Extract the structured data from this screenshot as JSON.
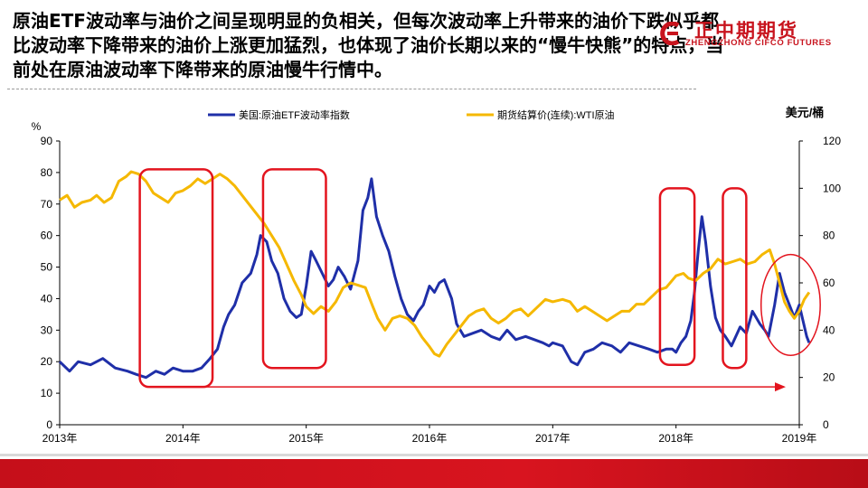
{
  "slide": {
    "headline": "原油ETF波动率与油价之间呈现明显的负相关，但每次波动率上升带来的油价下跌似乎都比波动率下降带来的油价上涨更加猛烈，也体现了油价长期以来的“慢牛快熊”的特点，当前处在原油波动率下降带来的原油慢牛行情中。"
  },
  "logo": {
    "name": "正中期期货",
    "subtitle": "ZHENGZHONG CIFCO FUTURES",
    "color": "#c8141e"
  },
  "colors": {
    "vol_series": "#1f2fa8",
    "price_series": "#f5b800",
    "highlight": "#e3141e",
    "footer": "#d0101b"
  },
  "chart_data": {
    "type": "line",
    "x": [
      "2013年",
      "2014年",
      "2015年",
      "2016年",
      "2017年",
      "2018年",
      "2019年"
    ],
    "left_axis": {
      "unit": "%",
      "ticks": [
        "0",
        "10",
        "20",
        "30",
        "40",
        "50",
        "60",
        "70",
        "80",
        "90"
      ],
      "range": [
        0,
        90
      ]
    },
    "right_axis": {
      "unit": "美元/桶",
      "ticks": [
        "0",
        "20",
        "40",
        "60",
        "80",
        "100",
        "120"
      ],
      "range": [
        0,
        120
      ]
    },
    "legend_position": "top",
    "grid": false,
    "series": [
      {
        "name": "美国:原油ETF波动率指数",
        "axis": "left",
        "points": [
          [
            2013.0,
            20
          ],
          [
            2013.08,
            17
          ],
          [
            2013.15,
            20
          ],
          [
            2013.25,
            19
          ],
          [
            2013.35,
            21
          ],
          [
            2013.45,
            18
          ],
          [
            2013.55,
            17
          ],
          [
            2013.62,
            16
          ],
          [
            2013.7,
            15
          ],
          [
            2013.78,
            17
          ],
          [
            2013.85,
            16
          ],
          [
            2013.92,
            18
          ],
          [
            2014.0,
            17
          ],
          [
            2014.08,
            17
          ],
          [
            2014.15,
            18
          ],
          [
            2014.22,
            21
          ],
          [
            2014.28,
            24
          ],
          [
            2014.33,
            31
          ],
          [
            2014.37,
            35
          ],
          [
            2014.42,
            38
          ],
          [
            2014.48,
            45
          ],
          [
            2014.55,
            48
          ],
          [
            2014.6,
            54
          ],
          [
            2014.63,
            60
          ],
          [
            2014.68,
            58
          ],
          [
            2014.72,
            52
          ],
          [
            2014.77,
            48
          ],
          [
            2014.82,
            40
          ],
          [
            2014.87,
            36
          ],
          [
            2014.92,
            34
          ],
          [
            2014.96,
            35
          ],
          [
            2015.0,
            44
          ],
          [
            2015.04,
            55
          ],
          [
            2015.08,
            52
          ],
          [
            2015.13,
            48
          ],
          [
            2015.18,
            44
          ],
          [
            2015.22,
            46
          ],
          [
            2015.26,
            50
          ],
          [
            2015.31,
            47
          ],
          [
            2015.36,
            43
          ],
          [
            2015.42,
            52
          ],
          [
            2015.46,
            68
          ],
          [
            2015.5,
            72
          ],
          [
            2015.53,
            78
          ],
          [
            2015.57,
            66
          ],
          [
            2015.62,
            60
          ],
          [
            2015.67,
            55
          ],
          [
            2015.72,
            47
          ],
          [
            2015.77,
            40
          ],
          [
            2015.82,
            35
          ],
          [
            2015.87,
            33
          ],
          [
            2015.91,
            36
          ],
          [
            2015.95,
            38
          ],
          [
            2016.0,
            44
          ],
          [
            2016.04,
            42
          ],
          [
            2016.08,
            45
          ],
          [
            2016.12,
            46
          ],
          [
            2016.18,
            40
          ],
          [
            2016.22,
            32
          ],
          [
            2016.28,
            28
          ],
          [
            2016.35,
            29
          ],
          [
            2016.42,
            30
          ],
          [
            2016.5,
            28
          ],
          [
            2016.57,
            27
          ],
          [
            2016.63,
            30
          ],
          [
            2016.7,
            27
          ],
          [
            2016.78,
            28
          ],
          [
            2016.85,
            27
          ],
          [
            2016.92,
            26
          ],
          [
            2016.97,
            25
          ],
          [
            2017.0,
            26
          ],
          [
            2017.08,
            25
          ],
          [
            2017.15,
            20
          ],
          [
            2017.2,
            19
          ],
          [
            2017.26,
            23
          ],
          [
            2017.33,
            24
          ],
          [
            2017.4,
            26
          ],
          [
            2017.48,
            25
          ],
          [
            2017.55,
            23
          ],
          [
            2017.62,
            26
          ],
          [
            2017.7,
            25
          ],
          [
            2017.78,
            24
          ],
          [
            2017.85,
            23
          ],
          [
            2017.92,
            24
          ],
          [
            2017.97,
            24
          ],
          [
            2018.0,
            23
          ],
          [
            2018.04,
            26
          ],
          [
            2018.08,
            28
          ],
          [
            2018.12,
            33
          ],
          [
            2018.15,
            42
          ],
          [
            2018.18,
            55
          ],
          [
            2018.21,
            66
          ],
          [
            2018.24,
            58
          ],
          [
            2018.28,
            44
          ],
          [
            2018.32,
            34
          ],
          [
            2018.36,
            30
          ],
          [
            2018.4,
            28
          ],
          [
            2018.45,
            25
          ],
          [
            2018.52,
            31
          ],
          [
            2018.57,
            29
          ],
          [
            2018.62,
            36
          ],
          [
            2018.68,
            32
          ],
          [
            2018.72,
            30
          ],
          [
            2018.75,
            28
          ],
          [
            2018.8,
            38
          ],
          [
            2018.84,
            48
          ],
          [
            2018.88,
            42
          ],
          [
            2018.92,
            38
          ],
          [
            2018.96,
            34
          ],
          [
            2019.0,
            38
          ],
          [
            2019.03,
            33
          ],
          [
            2019.06,
            28
          ],
          [
            2019.08,
            26
          ]
        ]
      },
      {
        "name": "期货结算价(连续):WTI原油",
        "axis": "right",
        "points": [
          [
            2013.0,
            95
          ],
          [
            2013.06,
            97
          ],
          [
            2013.12,
            92
          ],
          [
            2013.18,
            94
          ],
          [
            2013.25,
            95
          ],
          [
            2013.3,
            97
          ],
          [
            2013.36,
            94
          ],
          [
            2013.42,
            96
          ],
          [
            2013.48,
            103
          ],
          [
            2013.54,
            105
          ],
          [
            2013.58,
            107
          ],
          [
            2013.64,
            106
          ],
          [
            2013.7,
            103
          ],
          [
            2013.76,
            98
          ],
          [
            2013.82,
            96
          ],
          [
            2013.88,
            94
          ],
          [
            2013.94,
            98
          ],
          [
            2014.0,
            99
          ],
          [
            2014.06,
            101
          ],
          [
            2014.12,
            104
          ],
          [
            2014.18,
            102
          ],
          [
            2014.24,
            104
          ],
          [
            2014.3,
            106
          ],
          [
            2014.36,
            104
          ],
          [
            2014.42,
            101
          ],
          [
            2014.48,
            97
          ],
          [
            2014.54,
            93
          ],
          [
            2014.6,
            89
          ],
          [
            2014.66,
            85
          ],
          [
            2014.72,
            80
          ],
          [
            2014.78,
            75
          ],
          [
            2014.84,
            68
          ],
          [
            2014.9,
            61
          ],
          [
            2014.96,
            55
          ],
          [
            2015.0,
            50
          ],
          [
            2015.06,
            47
          ],
          [
            2015.12,
            50
          ],
          [
            2015.18,
            48
          ],
          [
            2015.24,
            52
          ],
          [
            2015.3,
            58
          ],
          [
            2015.36,
            60
          ],
          [
            2015.42,
            59
          ],
          [
            2015.48,
            58
          ],
          [
            2015.54,
            50
          ],
          [
            2015.58,
            45
          ],
          [
            2015.64,
            40
          ],
          [
            2015.7,
            45
          ],
          [
            2015.76,
            46
          ],
          [
            2015.82,
            45
          ],
          [
            2015.88,
            42
          ],
          [
            2015.94,
            37
          ],
          [
            2016.0,
            33
          ],
          [
            2016.04,
            30
          ],
          [
            2016.08,
            29
          ],
          [
            2016.14,
            34
          ],
          [
            2016.2,
            38
          ],
          [
            2016.26,
            42
          ],
          [
            2016.32,
            46
          ],
          [
            2016.38,
            48
          ],
          [
            2016.44,
            49
          ],
          [
            2016.5,
            45
          ],
          [
            2016.56,
            43
          ],
          [
            2016.62,
            45
          ],
          [
            2016.68,
            48
          ],
          [
            2016.74,
            49
          ],
          [
            2016.8,
            46
          ],
          [
            2016.88,
            50
          ],
          [
            2016.94,
            53
          ],
          [
            2017.0,
            52
          ],
          [
            2017.08,
            53
          ],
          [
            2017.14,
            52
          ],
          [
            2017.2,
            48
          ],
          [
            2017.26,
            50
          ],
          [
            2017.32,
            48
          ],
          [
            2017.38,
            46
          ],
          [
            2017.44,
            44
          ],
          [
            2017.5,
            46
          ],
          [
            2017.56,
            48
          ],
          [
            2017.62,
            48
          ],
          [
            2017.68,
            51
          ],
          [
            2017.74,
            51
          ],
          [
            2017.8,
            54
          ],
          [
            2017.86,
            57
          ],
          [
            2017.92,
            58
          ],
          [
            2018.0,
            63
          ],
          [
            2018.06,
            64
          ],
          [
            2018.1,
            62
          ],
          [
            2018.16,
            61
          ],
          [
            2018.22,
            64
          ],
          [
            2018.28,
            66
          ],
          [
            2018.34,
            70
          ],
          [
            2018.4,
            68
          ],
          [
            2018.46,
            69
          ],
          [
            2018.52,
            70
          ],
          [
            2018.58,
            68
          ],
          [
            2018.64,
            69
          ],
          [
            2018.7,
            72
          ],
          [
            2018.76,
            74
          ],
          [
            2018.8,
            68
          ],
          [
            2018.84,
            60
          ],
          [
            2018.88,
            52
          ],
          [
            2018.92,
            48
          ],
          [
            2018.96,
            45
          ],
          [
            2019.0,
            48
          ],
          [
            2019.04,
            53
          ],
          [
            2019.08,
            56
          ]
        ]
      }
    ],
    "annotations": {
      "highlight_boxes": [
        {
          "x_from": 2013.65,
          "x_to": 2014.24,
          "y_from": 12,
          "y_to": 81
        },
        {
          "x_from": 2014.65,
          "x_to": 2015.16,
          "y_from": 18,
          "y_to": 81
        },
        {
          "x_from": 2017.87,
          "x_to": 2018.15,
          "y_from": 19,
          "y_to": 75
        },
        {
          "x_from": 2018.38,
          "x_to": 2018.57,
          "y_from": 18,
          "y_to": 75
        }
      ],
      "highlight_circle": {
        "cx": 2018.93,
        "cy": 38,
        "rx": 0.24,
        "ry": 16
      },
      "trend_arrow": {
        "x_from": 2013.74,
        "x_to": 2018.89,
        "y": 12
      }
    }
  }
}
